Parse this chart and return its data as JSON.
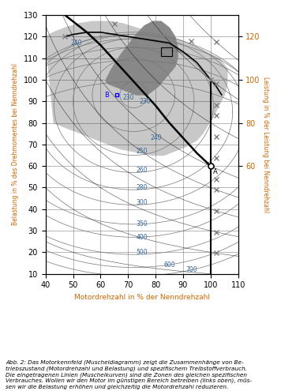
{
  "xlim": [
    40,
    110
  ],
  "ylim": [
    10,
    130
  ],
  "xlabel": "Motordrehzahl in % der Nenndrehzahl",
  "ylabel_left": "Belastung in % des Drehmomentes bei Nenndrehzahl",
  "ylabel_right": "Leistung in % der Leistung bei Nenndrehzahl",
  "yticks_left": [
    10,
    20,
    30,
    40,
    50,
    60,
    70,
    80,
    90,
    100,
    110,
    120,
    130
  ],
  "yticks_right": [
    60,
    80,
    100,
    120
  ],
  "xticks": [
    40,
    50,
    60,
    70,
    80,
    90,
    100,
    110
  ],
  "caption": "Abb. 2: Das Motorkennfeld (Muscheldiagramm) zeigt die Zusammenhänge von Be-\ntriebszustand (Motordrehzahl und Belastung) und spezifischem Treibstoffverbrauch.\nDie eingetragenen Linien (Muschelkurven) sind die Zonen des gleichen spezifischen\nVerbrauches. Wollen wir den Motor im günstigen Bereich betreiben (links oben), müs-\nsen wir die Belastung erhöhen und gleichzeitig die Motordrehzahl reduzieren.",
  "light_gray": "#c8c8c8",
  "dark_gray": "#888888",
  "orange": "#cc6600",
  "blue_label": "#336699",
  "contour_color": "#777777"
}
